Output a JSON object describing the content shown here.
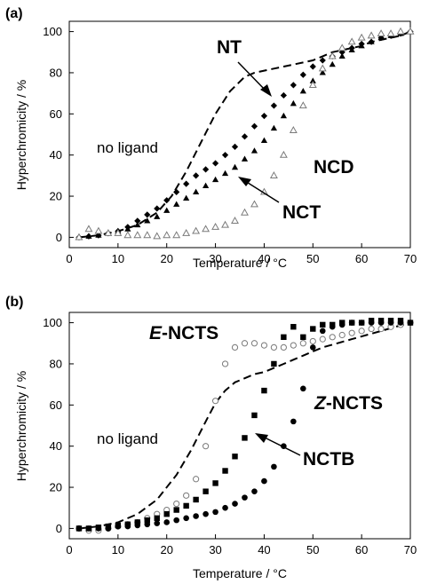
{
  "chart_data": [
    {
      "type": "scatter",
      "panel_label": "(a)",
      "xlabel": "Temperature / °C",
      "ylabel": "Hyperchromicity / %",
      "xlim": [
        0,
        70
      ],
      "ylim": [
        -5,
        105
      ],
      "x_ticks": [
        0,
        10,
        20,
        30,
        40,
        50,
        60,
        70
      ],
      "y_ticks": [
        0,
        20,
        40,
        60,
        80,
        100
      ],
      "grid": false,
      "series": [
        {
          "name": "no ligand",
          "style": "dashed-line",
          "color": "#000000",
          "x": [
            2,
            6,
            10,
            14,
            18,
            21,
            24,
            27,
            30,
            33,
            36,
            38,
            40,
            42,
            44,
            46,
            48,
            50,
            52,
            54,
            56,
            58,
            60,
            62,
            64,
            66,
            68,
            70
          ],
          "y": [
            0,
            1,
            3,
            6,
            12,
            20,
            32,
            46,
            60,
            71,
            78,
            80,
            81,
            82,
            83,
            84,
            85,
            86,
            88,
            90,
            91,
            92,
            93,
            95,
            96,
            97,
            98,
            100
          ]
        },
        {
          "name": "NT",
          "style": "marker-diamond-filled",
          "color": "#000000",
          "x": [
            2,
            4,
            6,
            8,
            10,
            12,
            14,
            16,
            18,
            20,
            22,
            24,
            26,
            28,
            30,
            32,
            34,
            36,
            38,
            40,
            42,
            44,
            46,
            48,
            50,
            52,
            54,
            56,
            58,
            60,
            62,
            64,
            66,
            68,
            70
          ],
          "y": [
            0,
            0.5,
            1,
            2,
            3,
            5,
            8,
            11,
            14,
            18,
            22,
            26,
            30,
            33,
            36,
            40,
            44,
            49,
            54,
            59,
            64,
            69,
            74,
            79,
            83,
            86,
            88,
            90,
            92,
            94,
            95,
            97,
            98,
            99,
            100
          ]
        },
        {
          "name": "NCT",
          "style": "marker-triangle-filled",
          "color": "#000000",
          "x": [
            2,
            4,
            6,
            8,
            10,
            12,
            14,
            16,
            18,
            20,
            22,
            24,
            26,
            28,
            30,
            32,
            34,
            36,
            38,
            40,
            42,
            44,
            46,
            48,
            50,
            52,
            54,
            56,
            58,
            60,
            62,
            64,
            66,
            68,
            70
          ],
          "y": [
            0,
            0.5,
            1,
            2,
            3,
            4,
            6,
            8,
            10,
            13,
            16,
            19,
            22,
            25,
            28,
            31,
            34,
            38,
            42,
            47,
            53,
            59,
            65,
            71,
            76,
            80,
            84,
            88,
            91,
            93,
            95,
            97,
            98,
            99,
            100
          ]
        },
        {
          "name": "NCD",
          "style": "marker-triangle-open",
          "color": "#7a7a7a",
          "x": [
            2,
            4,
            6,
            8,
            10,
            12,
            14,
            16,
            18,
            20,
            22,
            24,
            26,
            28,
            30,
            32,
            34,
            36,
            38,
            40,
            42,
            44,
            46,
            48,
            50,
            52,
            54,
            56,
            58,
            60,
            62,
            64,
            66,
            68,
            70
          ],
          "y": [
            0,
            4,
            3,
            2,
            2,
            1,
            1,
            1,
            0.5,
            1,
            1,
            2,
            3,
            4,
            5,
            6,
            8,
            12,
            16,
            22,
            30,
            40,
            52,
            64,
            74,
            82,
            88,
            92,
            95,
            97,
            98,
            99,
            99,
            100,
            100
          ]
        }
      ],
      "annotations": [
        {
          "text": "NT",
          "style": "bold",
          "arrow_to": [
            39,
            72
          ]
        },
        {
          "text": "NCD",
          "style": "bold"
        },
        {
          "text": "NCT",
          "style": "bold",
          "arrow_to": [
            34,
            35
          ]
        },
        {
          "text": "no ligand",
          "style": "plain"
        }
      ]
    },
    {
      "type": "scatter",
      "panel_label": "(b)",
      "xlabel": "Temperature / °C",
      "ylabel": "Hyperchromicity / %",
      "xlim": [
        0,
        70
      ],
      "ylim": [
        -5,
        105
      ],
      "x_ticks": [
        0,
        10,
        20,
        30,
        40,
        50,
        60,
        70
      ],
      "y_ticks": [
        0,
        20,
        40,
        60,
        80,
        100
      ],
      "grid": false,
      "series": [
        {
          "name": "no ligand",
          "style": "dashed-line",
          "color": "#000000",
          "x": [
            2,
            6,
            10,
            14,
            18,
            22,
            25,
            28,
            30,
            32,
            34,
            36,
            38,
            40,
            42,
            44,
            46,
            48,
            50,
            52,
            55,
            58,
            61,
            64,
            67,
            70
          ],
          "y": [
            0,
            1,
            3,
            7,
            14,
            26,
            38,
            52,
            61,
            67,
            71,
            73,
            75,
            76,
            78,
            80,
            82,
            84,
            86,
            88,
            90,
            92,
            94,
            96,
            98,
            100
          ]
        },
        {
          "name": "E-NCTS",
          "style": "marker-circle-open",
          "color": "#7a7a7a",
          "x": [
            2,
            4,
            6,
            8,
            10,
            12,
            14,
            16,
            18,
            20,
            22,
            24,
            26,
            28,
            30,
            32,
            34,
            36,
            38,
            40,
            42,
            44,
            46,
            48,
            50,
            52,
            54,
            56,
            58,
            60,
            62,
            64,
            66,
            68,
            70
          ],
          "y": [
            0,
            -1,
            -1,
            0,
            1,
            2,
            3,
            5,
            7,
            9,
            12,
            16,
            24,
            40,
            62,
            80,
            88,
            90,
            90,
            89,
            88,
            88,
            89,
            90,
            91,
            92,
            93,
            94,
            95,
            96,
            97,
            97,
            98,
            99,
            100
          ]
        },
        {
          "name": "NCTB",
          "style": "marker-square-filled",
          "color": "#000000",
          "x": [
            2,
            4,
            6,
            8,
            10,
            12,
            14,
            16,
            18,
            20,
            22,
            24,
            26,
            28,
            30,
            32,
            34,
            36,
            38,
            40,
            42,
            44,
            46,
            48,
            50,
            52,
            54,
            56,
            58,
            60,
            62,
            64,
            66,
            68,
            70
          ],
          "y": [
            0,
            0,
            0.5,
            1,
            1.5,
            2,
            3,
            4,
            5,
            7,
            9,
            11,
            14,
            18,
            22,
            28,
            35,
            44,
            55,
            67,
            80,
            93,
            98,
            93,
            97,
            99,
            99,
            100,
            100,
            100,
            101,
            101,
            101,
            101,
            100
          ]
        },
        {
          "name": "Z-NCTS",
          "style": "marker-circle-filled",
          "color": "#000000",
          "x": [
            2,
            4,
            6,
            8,
            10,
            12,
            14,
            16,
            18,
            20,
            22,
            24,
            26,
            28,
            30,
            32,
            34,
            36,
            38,
            40,
            42,
            44,
            46,
            48,
            50,
            52,
            54,
            56,
            58,
            60,
            62,
            64,
            66,
            68,
            70
          ],
          "y": [
            0,
            0,
            0,
            0,
            1,
            1,
            1.5,
            2,
            2.5,
            3,
            4,
            5,
            6,
            7,
            8,
            10,
            12,
            15,
            18,
            23,
            30,
            40,
            52,
            68,
            88,
            96,
            98,
            99,
            100,
            100,
            100,
            100,
            100,
            100,
            100
          ]
        }
      ],
      "annotations": [
        {
          "text_prefix": "E",
          "text": "-NCTS",
          "style": "bold"
        },
        {
          "text_prefix": "Z",
          "text": "-NCTS",
          "style": "bold"
        },
        {
          "text": "NCTB",
          "style": "bold",
          "arrow_to": [
            37,
            45
          ]
        },
        {
          "text": "no ligand",
          "style": "plain"
        }
      ]
    }
  ]
}
